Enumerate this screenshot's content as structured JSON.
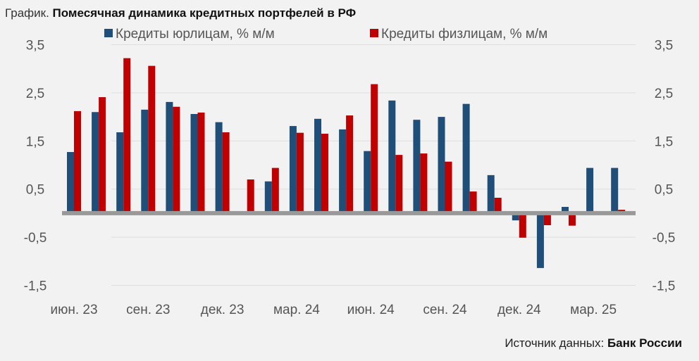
{
  "chart_data": {
    "type": "bar",
    "title_prefix": "График.",
    "title": "Помесячная динамика кредитных портфелей в РФ",
    "source_prefix": "Источник данных:",
    "source": "Банк России",
    "ylim": [
      -1.5,
      3.5
    ],
    "yticks": [
      "3,5",
      "2,5",
      "1,5",
      "0,5",
      "-0,5",
      "-1,5"
    ],
    "ytick_values": [
      3.5,
      2.5,
      1.5,
      0.5,
      -0.5,
      -1.5
    ],
    "xtick_labels": [
      "июн. 23",
      "сен. 23",
      "дек. 23",
      "мар. 24",
      "июн. 24",
      "сен. 24",
      "дек. 24",
      "мар. 25"
    ],
    "xtick_every": 3,
    "categories": [
      "2023-06",
      "2023-07",
      "2023-08",
      "2023-09",
      "2023-10",
      "2023-11",
      "2023-12",
      "2024-01",
      "2024-02",
      "2024-03",
      "2024-04",
      "2024-05",
      "2024-06",
      "2024-07",
      "2024-08",
      "2024-09",
      "2024-10",
      "2024-11",
      "2024-12",
      "2025-01",
      "2025-02",
      "2025-03",
      "2025-04"
    ],
    "grid": true,
    "legend_position": "top",
    "series": [
      {
        "name": "Кредиты юрлицам, % м/м",
        "color": "#1f4e79",
        "values": [
          1.27,
          2.1,
          1.68,
          2.15,
          2.31,
          2.06,
          1.89,
          0,
          0.66,
          1.81,
          1.96,
          1.74,
          1.29,
          2.34,
          1.94,
          2.0,
          2.27,
          0.79,
          -0.15,
          -1.14,
          0.13,
          0.94,
          0.94
        ]
      },
      {
        "name": "Кредиты физлицам, % м/м",
        "color": "#c00000",
        "values": [
          2.12,
          2.41,
          3.22,
          3.06,
          2.21,
          2.09,
          1.68,
          0.7,
          0.94,
          1.67,
          1.65,
          2.03,
          2.68,
          1.21,
          1.24,
          1.07,
          0.45,
          0.32,
          -0.51,
          -0.25,
          -0.26,
          0,
          0.07
        ]
      }
    ]
  }
}
